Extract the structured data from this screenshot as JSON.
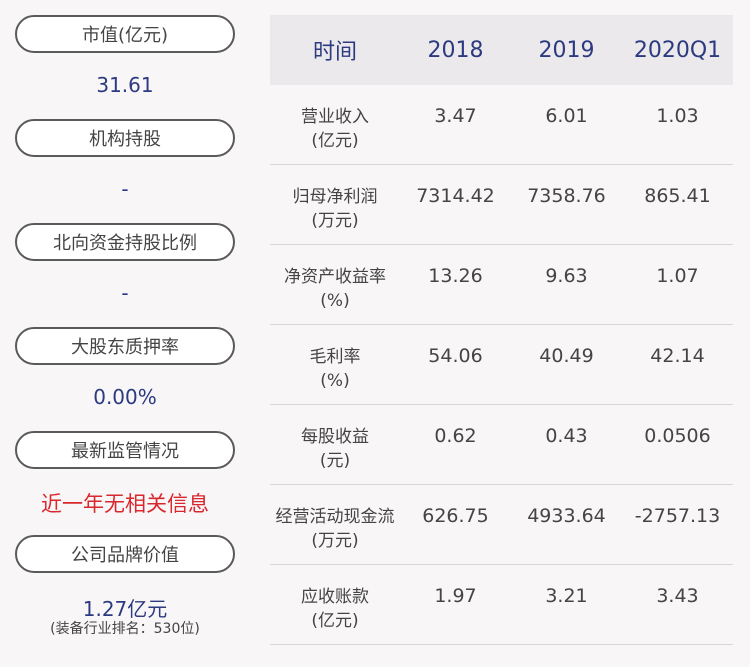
{
  "left": {
    "market_cap_label": "市值(亿元)",
    "market_cap_value": "31.61",
    "institution_label": "机构持股",
    "institution_value": "-",
    "northbound_label": "北向资金持股比例",
    "northbound_value": "-",
    "pledge_label": "大股东质押率",
    "pledge_value": "0.00%",
    "regulation_label": "最新监管情况",
    "regulation_value": "近一年无相关信息",
    "brand_label": "公司品牌价值",
    "brand_value": "1.27亿元",
    "brand_rank": "(装备行业排名：530位)"
  },
  "table": {
    "headers": [
      "时间",
      "2018",
      "2019",
      "2020Q1"
    ],
    "rows": [
      {
        "metric": "营业收入",
        "unit": "(亿元)",
        "values": [
          "3.47",
          "6.01",
          "1.03"
        ]
      },
      {
        "metric": "归母净利润",
        "unit": "(万元)",
        "values": [
          "7314.42",
          "7358.76",
          "865.41"
        ]
      },
      {
        "metric": "净资产收益率",
        "unit": "(%)",
        "values": [
          "13.26",
          "9.63",
          "1.07"
        ]
      },
      {
        "metric": "毛利率",
        "unit": "(%)",
        "values": [
          "54.06",
          "40.49",
          "42.14"
        ]
      },
      {
        "metric": "每股收益",
        "unit": "(元)",
        "values": [
          "0.62",
          "0.43",
          "0.0506"
        ]
      },
      {
        "metric": "经营活动现金流",
        "unit": "(万元)",
        "values": [
          "626.75",
          "4933.64",
          "-2757.13"
        ]
      },
      {
        "metric": "应收账款",
        "unit": "(亿元)",
        "values": [
          "1.97",
          "3.21",
          "3.43"
        ]
      }
    ]
  }
}
